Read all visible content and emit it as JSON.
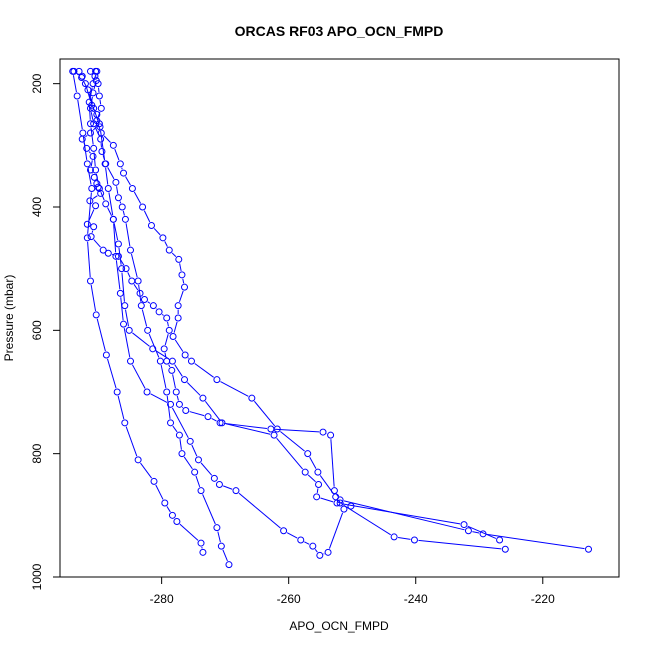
{
  "chart_data": {
    "type": "scatter",
    "title": "ORCAS RF03 APO_OCN_FMPD",
    "xlabel": "APO_OCN_FMPD",
    "ylabel": "Pressure (mbar)",
    "xlim": [
      -296,
      -208
    ],
    "ylim": [
      1000,
      160
    ],
    "y_reversed": true,
    "x_ticks": [
      -280,
      -260,
      -240,
      -220
    ],
    "y_ticks": [
      200,
      400,
      600,
      800,
      1000
    ],
    "grid": false,
    "legend": "none",
    "color": "#0000ff",
    "marker": "open-circle",
    "series": [
      {
        "x": [
          -293,
          -292.5,
          -292,
          -291,
          -290.2,
          -289.8,
          -291.2,
          -292.5,
          -291.8,
          -290.8,
          -291.2,
          -290.6,
          -290.2,
          -290,
          -289.6,
          -291.3,
          -290.4,
          -291.7,
          -290.7,
          -291.1,
          -289.2,
          -288.4,
          -286.8,
          -285.6,
          -284.7,
          -283.4,
          -282.7,
          -281.3,
          -280.4,
          -279.2,
          -278.8,
          -279.6,
          -279.2,
          -278.4,
          -277.7,
          -277.2,
          -276.2,
          -272.7,
          -270.8,
          -262.8,
          -254.6,
          -253.4,
          -252.8,
          -251.9,
          -231.7,
          -229.4,
          -212.8
        ],
        "y": [
          180,
          188,
          200,
          235,
          250,
          265,
          280,
          290,
          305,
          318,
          340,
          352,
          362,
          368,
          378,
          390,
          398,
          428,
          432,
          448,
          470,
          475,
          480,
          500,
          520,
          540,
          550,
          560,
          570,
          580,
          600,
          630,
          650,
          665,
          700,
          720,
          730,
          740,
          750,
          760,
          765,
          770,
          860,
          875,
          925,
          930,
          955
        ]
      },
      {
        "x": [
          -291.2,
          -290.5,
          -290,
          -289.8,
          -289.5,
          -290.2,
          -289.5,
          -287.6,
          -286.5,
          -286,
          -284.6,
          -283,
          -281.6,
          -279.8,
          -278.8,
          -277.3,
          -276.8,
          -276.4,
          -277.4,
          -277.4,
          -278.2,
          -276.3,
          -275.3,
          -271.3,
          -265.8,
          -261.8,
          -257,
          -255.4,
          -252.6,
          -251.9,
          -243.4,
          -240.2,
          -225.9
        ],
        "y": [
          180,
          188,
          200,
          220,
          240,
          260,
          280,
          300,
          330,
          345,
          370,
          400,
          430,
          450,
          470,
          485,
          510,
          530,
          560,
          580,
          610,
          640,
          650,
          680,
          710,
          760,
          800,
          830,
          870,
          880,
          935,
          940,
          955
        ]
      },
      {
        "x": [
          -290.4,
          -290.3,
          -290.8,
          -291.2,
          -290.7,
          -289.6,
          -289.4,
          -288.8,
          -287.2,
          -286.8,
          -286.2,
          -285.7,
          -284.9,
          -283.7,
          -283.2,
          -282.2,
          -280.2,
          -279.2,
          -278.6,
          -277.2,
          -276.8,
          -274.8,
          -273.8,
          -271.3,
          -270.6,
          -269.4
        ],
        "y": [
          180,
          195,
          215,
          240,
          265,
          290,
          310,
          330,
          360,
          385,
          400,
          420,
          470,
          520,
          560,
          600,
          650,
          700,
          750,
          770,
          800,
          830,
          860,
          920,
          950,
          980
        ]
      },
      {
        "x": [
          -294,
          -293.3,
          -292.4,
          -291.7,
          -291,
          -291.7,
          -291.2,
          -290.3,
          -288.7,
          -287,
          -285.8,
          -283.7,
          -281.2,
          -279.5,
          -278.3,
          -277.6,
          -273.8,
          -273.5
        ],
        "y": [
          180,
          220,
          280,
          330,
          370,
          450,
          520,
          575,
          640,
          700,
          750,
          810,
          845,
          880,
          900,
          910,
          945,
          960
        ]
      },
      {
        "x": [
          -293.8,
          -292.6,
          -291.6,
          -290.7,
          -289.7,
          -288.9,
          -288.4,
          -287.6,
          -287.2,
          -286.5,
          -286,
          -284.9,
          -282.3,
          -278.6,
          -275.5,
          -274.2,
          -271.7,
          -270.9,
          -268.3,
          -260.8,
          -258.1,
          -256.2,
          -255.1,
          -253.8,
          -251.3,
          -250.2
        ],
        "y": [
          180,
          190,
          210,
          240,
          270,
          330,
          370,
          420,
          480,
          540,
          590,
          650,
          700,
          720,
          780,
          810,
          840,
          850,
          860,
          925,
          940,
          950,
          965,
          960,
          890,
          885
        ]
      },
      {
        "x": [
          -290.2,
          -290.8,
          -291.4,
          -291.2,
          -290.7,
          -290.4,
          -289.8,
          -288.8,
          -287.6,
          -286.8,
          -286.3,
          -285.8,
          -285.1,
          -281.4,
          -278.3,
          -276.4,
          -273.5,
          -270.5,
          -262.3,
          -257.4,
          -255.3,
          -255.6,
          -252.4,
          -232.4,
          -226.8
        ],
        "y": [
          180,
          200,
          230,
          265,
          305,
          340,
          370,
          395,
          420,
          460,
          500,
          560,
          600,
          630,
          650,
          680,
          710,
          750,
          770,
          830,
          850,
          870,
          880,
          915,
          940
        ]
      }
    ]
  }
}
